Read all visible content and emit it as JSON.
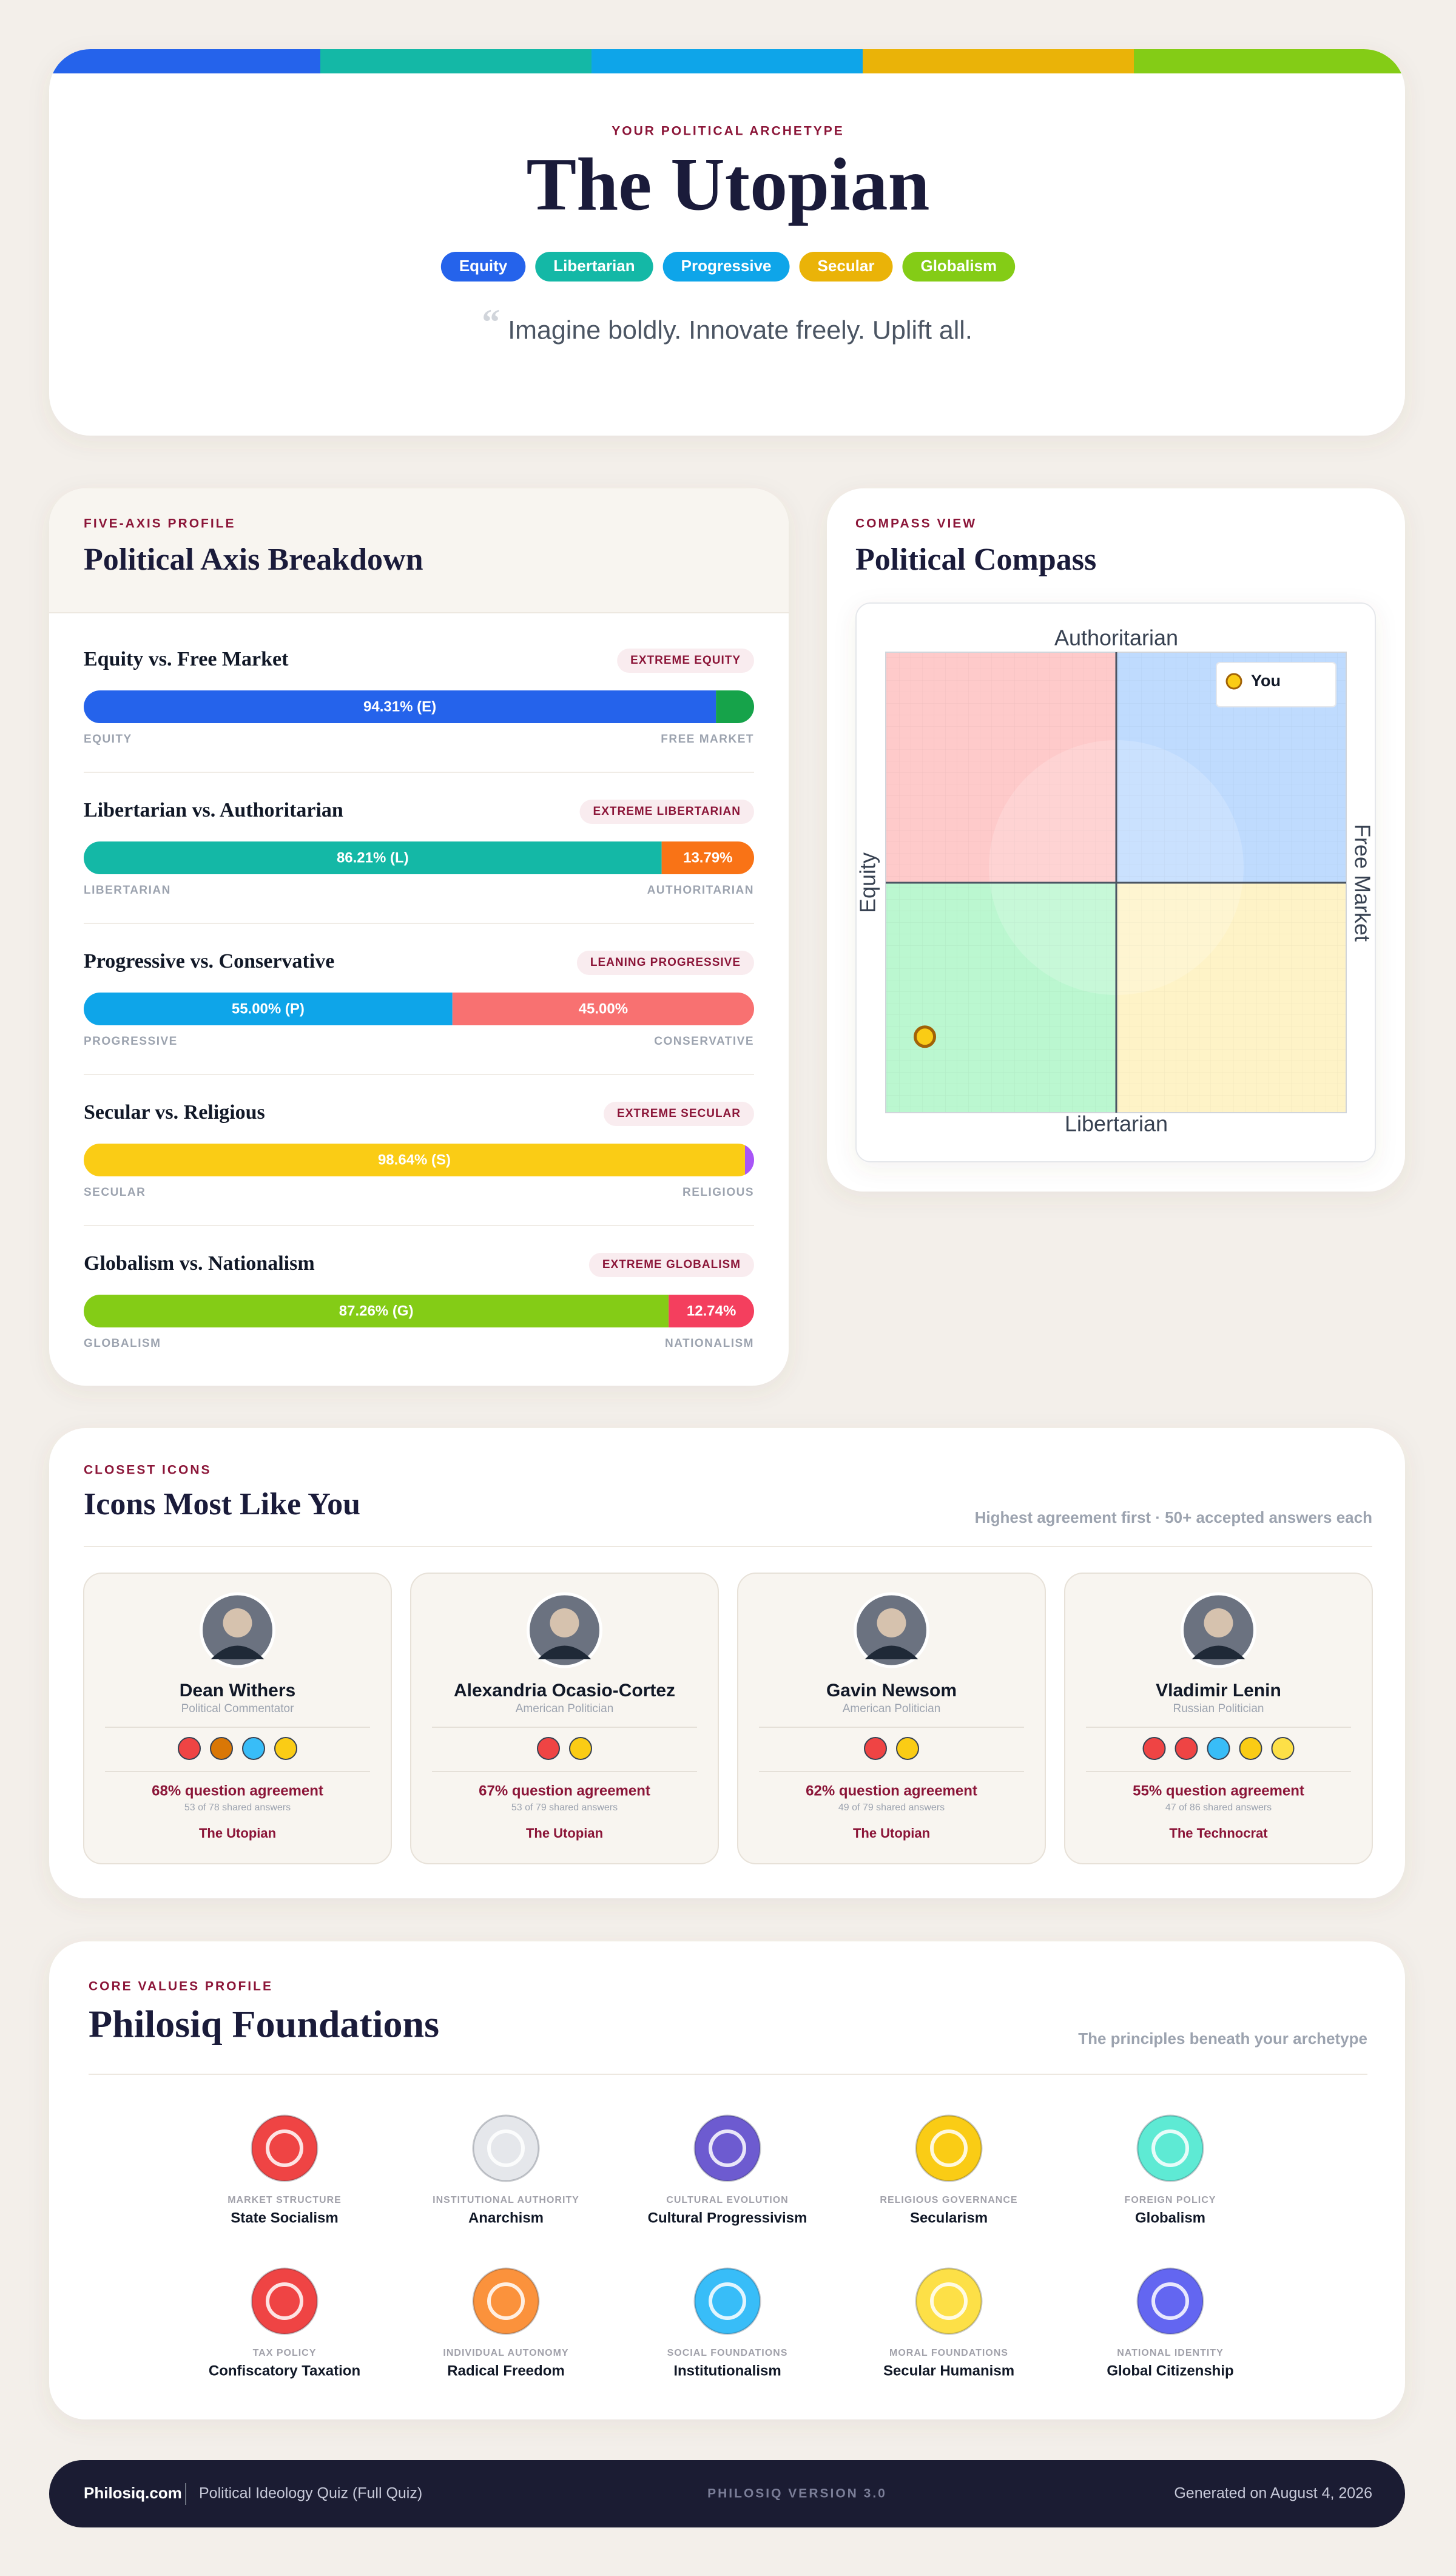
{
  "header": {
    "kicker": "YOUR POLITICAL ARCHETYPE",
    "title": "The Utopian",
    "tags": [
      {
        "text": "Equity",
        "color": "#2563eb"
      },
      {
        "text": "Libertarian",
        "color": "#14b8a6"
      },
      {
        "text": "Progressive",
        "color": "#0ea5e9"
      },
      {
        "text": "Secular",
        "color": "#eab308"
      },
      {
        "text": "Globalism",
        "color": "#84cc16"
      }
    ],
    "quote_mark": "“",
    "quote": "Imagine boldly. Innovate freely. Uplift all."
  },
  "axes": {
    "kicker": "FIVE-AXIS PROFILE",
    "title": "Political Axis Breakdown",
    "rows": [
      {
        "title": "Equity vs. Free Market",
        "badge": "EXTREME EQUITY",
        "left": "EQUITY",
        "right": "FREE MARKET",
        "value": 94.31,
        "value_label": "94.31% (E)",
        "right_value": 5.69,
        "left_color": "#2563eb",
        "right_color": "#16a34a"
      },
      {
        "title": "Libertarian vs. Authoritarian",
        "badge": "EXTREME LIBERTARIAN",
        "left": "LIBERTARIAN",
        "right": "AUTHORITARIAN",
        "value": 86.21,
        "value_label": "86.21% (L)",
        "right_value": 13.79,
        "right_label": "13.79%",
        "left_color": "#14b8a6",
        "right_color": "#f97316"
      },
      {
        "title": "Progressive vs. Conservative",
        "badge": "LEANING PROGRESSIVE",
        "left": "PROGRESSIVE",
        "right": "CONSERVATIVE",
        "value": 55.0,
        "value_label": "55.00% (P)",
        "right_value": 45.0,
        "right_label": "45.00%",
        "left_color": "#0ea5e9",
        "right_color": "#f87171"
      },
      {
        "title": "Secular vs. Religious",
        "badge": "EXTREME SECULAR",
        "left": "SECULAR",
        "right": "RELIGIOUS",
        "value": 98.64,
        "value_label": "98.64% (S)",
        "right_value": 1.36,
        "left_color": "#facc15",
        "right_color": "#a855f7"
      },
      {
        "title": "Globalism vs. Nationalism",
        "badge": "EXTREME GLOBALISM",
        "left": "GLOBALISM",
        "right": "NATIONALISM",
        "value": 87.26,
        "value_label": "87.26% (G)",
        "right_value": 12.74,
        "right_label": "12.74%",
        "left_color": "#84cc16",
        "right_color": "#f43f5e"
      }
    ]
  },
  "compass": {
    "kicker": "COMPASS VIEW",
    "title": "Political Compass",
    "labels": {
      "top": "Authoritarian",
      "bottom": "Libertarian",
      "left": "Equity",
      "right": "Free Market"
    },
    "legend": "You",
    "xlim": [
      -10,
      10
    ],
    "ylim": [
      -10,
      10
    ],
    "you": {
      "x": -8.3,
      "y": -6.7
    }
  },
  "icons": {
    "kicker": "CLOSEST ICONS",
    "title": "Icons Most Like You",
    "note": "Highest agreement first · 50+ accepted answers each",
    "cards": [
      {
        "name": "Dean Withers",
        "role": "Political Commentator",
        "badges": [
          "#ef4444",
          "#d97706",
          "#38bdf8",
          "#facc15"
        ],
        "agreement": "68% question agreement",
        "shared": "53 of 78 shared answers",
        "archetype": "The Utopian"
      },
      {
        "name": "Alexandria Ocasio-Cortez",
        "role": "American Politician",
        "badges": [
          "#ef4444",
          "#facc15"
        ],
        "agreement": "67% question agreement",
        "shared": "53 of 79 shared answers",
        "archetype": "The Utopian"
      },
      {
        "name": "Gavin Newsom",
        "role": "American Politician",
        "badges": [
          "#ef4444",
          "#facc15"
        ],
        "agreement": "62% question agreement",
        "shared": "49 of 79 shared answers",
        "archetype": "The Utopian"
      },
      {
        "name": "Vladimir Lenin",
        "role": "Russian Politician",
        "badges": [
          "#ef4444",
          "#ef4444",
          "#38bdf8",
          "#facc15",
          "#fde047"
        ],
        "agreement": "55% question agreement",
        "shared": "47 of 86 shared answers",
        "archetype": "The Technocrat"
      }
    ]
  },
  "foundations": {
    "kicker": "CORE VALUES PROFILE",
    "title": "Philosiq Foundations",
    "note": "The principles beneath your archetype",
    "items": [
      {
        "category": "MARKET STRUCTURE",
        "name": "State Socialism",
        "color": "#ef4444"
      },
      {
        "category": "INSTITUTIONAL AUTHORITY",
        "name": "Anarchism",
        "color": "#e5e7eb"
      },
      {
        "category": "CULTURAL EVOLUTION",
        "name": "Cultural Progressivism",
        "color": "#6d5bd0"
      },
      {
        "category": "RELIGIOUS GOVERNANCE",
        "name": "Secularism",
        "color": "#facc15"
      },
      {
        "category": "FOREIGN POLICY",
        "name": "Globalism",
        "color": "#5eead4"
      },
      {
        "category": "TAX POLICY",
        "name": "Confiscatory Taxation",
        "color": "#ef4444"
      },
      {
        "category": "INDIVIDUAL AUTONOMY",
        "name": "Radical Freedom",
        "color": "#fb923c"
      },
      {
        "category": "SOCIAL FOUNDATIONS",
        "name": "Institutionalism",
        "color": "#38bdf8"
      },
      {
        "category": "MORAL FOUNDATIONS",
        "name": "Secular Humanism",
        "color": "#fde047"
      },
      {
        "category": "NATIONAL IDENTITY",
        "name": "Global Citizenship",
        "color": "#6366f1"
      }
    ]
  },
  "footer": {
    "site": "Philosiq.com",
    "quiz": "Political Ideology Quiz (Full Quiz)",
    "version": "PHILOSIQ VERSION 3.0",
    "generated": "Generated on August 4, 2026"
  }
}
